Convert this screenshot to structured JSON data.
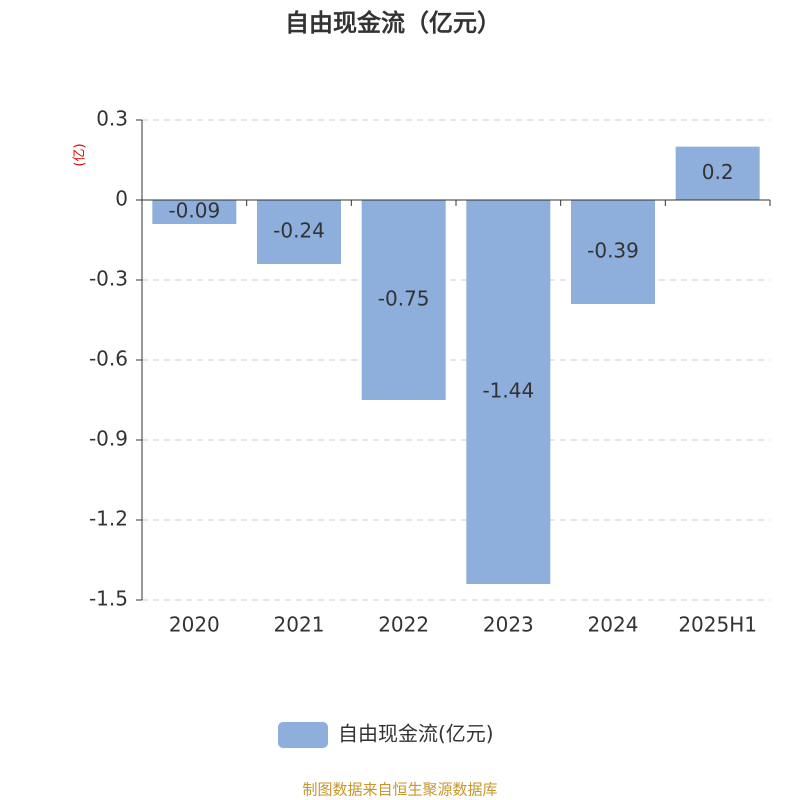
{
  "chart_data": {
    "type": "bar",
    "title": "自由现金流（亿元）",
    "y_label": "(亿)",
    "categories": [
      "2020",
      "2021",
      "2022",
      "2023",
      "2024",
      "2025H1"
    ],
    "series": [
      {
        "name": "自由现金流(亿元)",
        "color": "#8eaedb",
        "values": [
          -0.09,
          -0.24,
          -0.75,
          -1.44,
          -0.39,
          0.2
        ]
      }
    ],
    "ylim": [
      -1.5,
      0.3
    ],
    "yticks": [
      0.3,
      0,
      -0.3,
      -0.6,
      -0.9,
      -1.2,
      -1.5
    ],
    "grid": true,
    "source": "制图数据来自恒生聚源数据库"
  }
}
